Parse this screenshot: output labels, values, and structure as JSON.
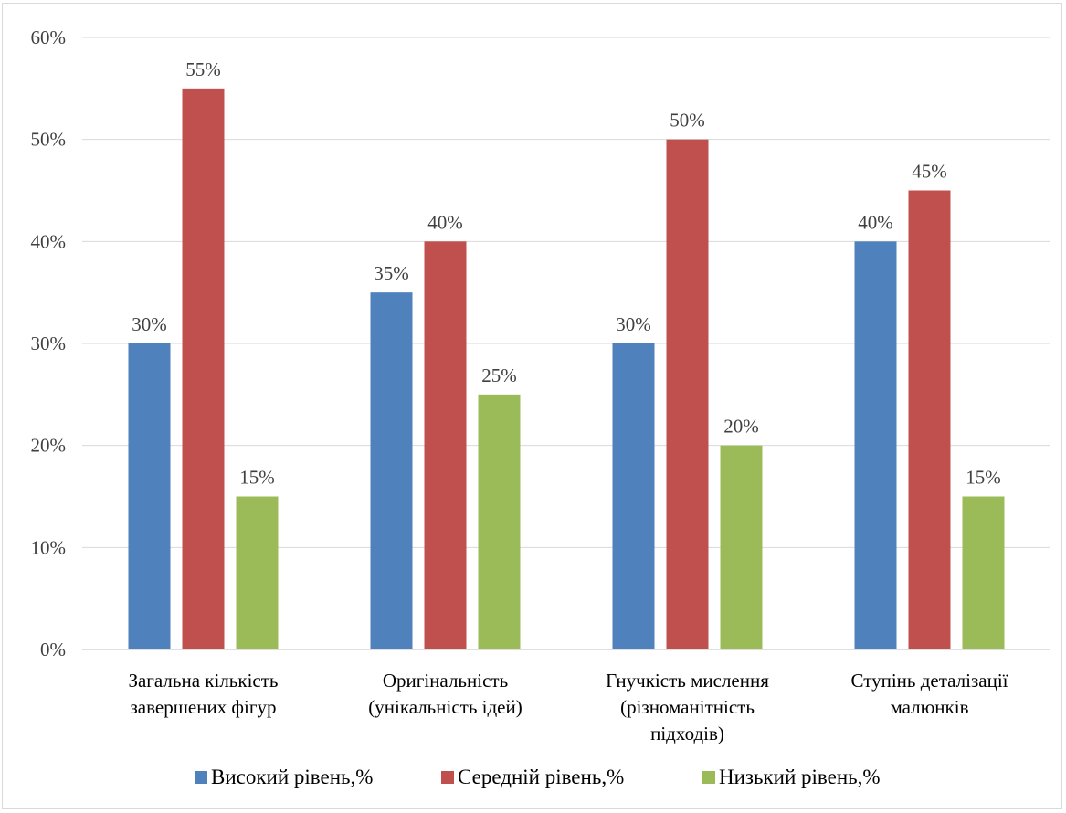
{
  "chart_data": {
    "type": "bar",
    "categories": [
      [
        "Загальна кількість",
        "завершених фігур"
      ],
      [
        "Оригінальність",
        "(унікальність ідей)"
      ],
      [
        "Гнучкість мислення",
        "(різноманітність",
        "підходів)"
      ],
      [
        "Ступінь деталізації",
        "малюнків"
      ]
    ],
    "series": [
      {
        "name": "Високий рівень,%",
        "values": [
          30,
          35,
          30,
          40
        ],
        "color": "#4f81bd"
      },
      {
        "name": "Середній рівень,%",
        "values": [
          55,
          40,
          50,
          45
        ],
        "color": "#c0504d"
      },
      {
        "name": "Низький рівень,%",
        "values": [
          15,
          25,
          20,
          15
        ],
        "color": "#9bbb59"
      }
    ],
    "y_ticks": [
      "0%",
      "10%",
      "20%",
      "30%",
      "40%",
      "50%",
      "60%"
    ],
    "ylim": [
      0,
      60
    ],
    "grid": true,
    "legend_position": "bottom",
    "value_suffix": "%"
  }
}
